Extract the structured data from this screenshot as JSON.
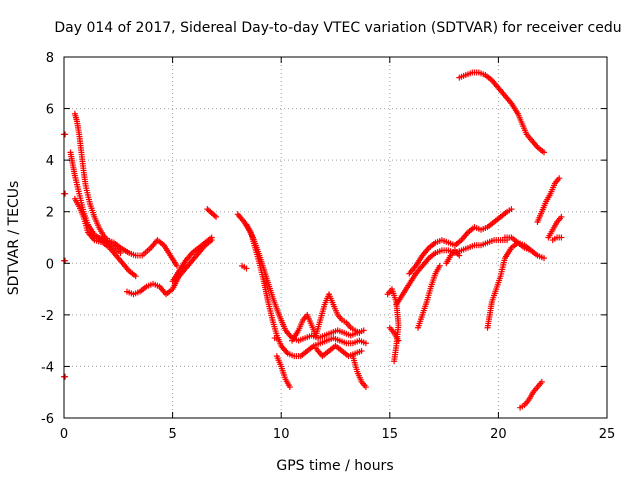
{
  "colors": {
    "series": "#ff0000",
    "grid": "#a0a0a0",
    "frame": "#000000",
    "background": "#ffffff"
  },
  "chart_data": {
    "type": "scatter",
    "title": "Day 014 of 2017, Sidereal Day-to-day VTEC variation (SDTVAR) for receiver cedu",
    "xlabel": "GPS time / hours",
    "ylabel": "SDTVAR / TECUs",
    "xlim": [
      0,
      25
    ],
    "ylim": [
      -6,
      8
    ],
    "xticks": [
      0,
      5,
      10,
      15,
      20,
      25
    ],
    "yticks": [
      -6,
      -4,
      -2,
      0,
      2,
      4,
      6,
      8
    ],
    "grid": true,
    "marker": "plus",
    "series": [
      {
        "name": "SDTVAR",
        "segments": [
          [
            [
              0.5,
              5.8
            ],
            [
              0.6,
              5.5
            ],
            [
              0.7,
              5.0
            ],
            [
              0.8,
              4.3
            ],
            [
              0.9,
              3.6
            ],
            [
              1.0,
              3.0
            ],
            [
              1.2,
              2.3
            ],
            [
              1.4,
              1.8
            ],
            [
              1.6,
              1.4
            ],
            [
              1.8,
              1.1
            ],
            [
              2.0,
              0.9
            ],
            [
              2.3,
              0.8
            ],
            [
              2.6,
              0.6
            ],
            [
              3.0,
              0.4
            ],
            [
              3.3,
              0.3
            ],
            [
              3.6,
              0.3
            ],
            [
              4.0,
              0.6
            ],
            [
              4.3,
              0.9
            ],
            [
              4.6,
              0.7
            ],
            [
              4.9,
              0.3
            ],
            [
              5.2,
              -0.1
            ]
          ],
          [
            [
              0.5,
              2.5
            ],
            [
              0.7,
              2.2
            ],
            [
              0.9,
              1.8
            ],
            [
              1.1,
              1.2
            ],
            [
              1.4,
              0.9
            ],
            [
              1.8,
              0.8
            ],
            [
              2.1,
              0.6
            ],
            [
              2.4,
              0.3
            ],
            [
              2.7,
              0.0
            ],
            [
              3.0,
              -0.3
            ],
            [
              3.3,
              -0.5
            ]
          ],
          [
            [
              0.3,
              4.3
            ],
            [
              0.5,
              3.4
            ],
            [
              0.7,
              2.7
            ],
            [
              0.9,
              2.0
            ],
            [
              1.1,
              1.5
            ],
            [
              1.4,
              1.1
            ],
            [
              1.8,
              0.9
            ],
            [
              2.2,
              0.7
            ],
            [
              2.6,
              0.4
            ]
          ],
          [
            [
              2.9,
              -1.1
            ],
            [
              3.2,
              -1.2
            ],
            [
              3.5,
              -1.1
            ],
            [
              3.8,
              -0.9
            ],
            [
              4.1,
              -0.8
            ],
            [
              4.4,
              -0.9
            ],
            [
              4.7,
              -1.2
            ],
            [
              5.0,
              -1.0
            ],
            [
              5.3,
              -0.5
            ],
            [
              5.6,
              -0.2
            ],
            [
              5.9,
              0.1
            ],
            [
              6.2,
              0.4
            ],
            [
              6.5,
              0.7
            ],
            [
              6.8,
              0.9
            ]
          ],
          [
            [
              5.0,
              -0.7
            ],
            [
              5.3,
              -0.3
            ],
            [
              5.6,
              0.1
            ],
            [
              5.9,
              0.4
            ],
            [
              6.2,
              0.6
            ],
            [
              6.5,
              0.8
            ],
            [
              6.8,
              1.0
            ]
          ],
          [
            [
              6.6,
              2.1
            ],
            [
              6.8,
              1.95
            ],
            [
              7.0,
              1.8
            ]
          ],
          [
            [
              8.0,
              1.9
            ],
            [
              8.3,
              1.6
            ],
            [
              8.6,
              1.2
            ],
            [
              8.8,
              0.6
            ],
            [
              9.0,
              0.0
            ],
            [
              9.2,
              -0.7
            ],
            [
              9.4,
              -1.5
            ],
            [
              9.6,
              -2.2
            ],
            [
              9.8,
              -2.8
            ],
            [
              10.0,
              -3.2
            ],
            [
              10.3,
              -3.5
            ],
            [
              10.6,
              -3.6
            ],
            [
              10.9,
              -3.6
            ],
            [
              11.2,
              -3.4
            ],
            [
              11.5,
              -3.2
            ],
            [
              11.8,
              -3.1
            ],
            [
              12.1,
              -3.0
            ],
            [
              12.4,
              -2.9
            ],
            [
              12.7,
              -3.0
            ],
            [
              13.0,
              -3.1
            ],
            [
              13.3,
              -3.1
            ],
            [
              13.6,
              -3.0
            ],
            [
              13.9,
              -3.1
            ]
          ],
          [
            [
              8.4,
              1.5
            ],
            [
              8.7,
              1.0
            ],
            [
              9.0,
              0.3
            ],
            [
              9.3,
              -0.5
            ],
            [
              9.6,
              -1.3
            ],
            [
              9.9,
              -2.0
            ],
            [
              10.2,
              -2.6
            ],
            [
              10.5,
              -2.9
            ],
            [
              10.8,
              -3.0
            ],
            [
              11.1,
              -2.9
            ],
            [
              11.4,
              -2.8
            ],
            [
              11.7,
              -2.9
            ],
            [
              12.0,
              -2.8
            ],
            [
              12.3,
              -2.7
            ],
            [
              12.6,
              -2.6
            ],
            [
              12.9,
              -2.7
            ],
            [
              13.2,
              -2.8
            ],
            [
              13.5,
              -2.7
            ],
            [
              13.8,
              -2.6
            ]
          ],
          [
            [
              8.2,
              -0.1
            ],
            [
              8.3,
              -0.15
            ],
            [
              8.4,
              -0.2
            ]
          ],
          [
            [
              9.8,
              -3.6
            ],
            [
              10.0,
              -4.0
            ],
            [
              10.2,
              -4.5
            ],
            [
              10.4,
              -4.8
            ]
          ],
          [
            [
              10.5,
              -3.0
            ],
            [
              10.8,
              -2.6
            ],
            [
              11.0,
              -2.2
            ],
            [
              11.2,
              -2.0
            ],
            [
              11.4,
              -2.4
            ],
            [
              11.6,
              -2.8
            ],
            [
              11.8,
              -2.2
            ],
            [
              12.0,
              -1.6
            ],
            [
              12.2,
              -1.2
            ],
            [
              12.4,
              -1.6
            ],
            [
              12.6,
              -2.0
            ],
            [
              12.8,
              -2.2
            ],
            [
              13.0,
              -2.3
            ],
            [
              13.2,
              -2.5
            ],
            [
              13.4,
              -2.6
            ],
            [
              13.6,
              -2.7
            ]
          ],
          [
            [
              11.6,
              -3.3
            ],
            [
              11.9,
              -3.6
            ],
            [
              12.2,
              -3.4
            ],
            [
              12.5,
              -3.2
            ],
            [
              12.8,
              -3.4
            ],
            [
              13.1,
              -3.6
            ],
            [
              13.4,
              -3.5
            ],
            [
              13.7,
              -3.4
            ]
          ],
          [
            [
              13.3,
              -3.6
            ],
            [
              13.5,
              -4.2
            ],
            [
              13.7,
              -4.6
            ],
            [
              13.9,
              -4.8
            ]
          ],
          [
            [
              14.9,
              -1.2
            ],
            [
              15.1,
              -1.0
            ],
            [
              15.3,
              -1.5
            ],
            [
              15.4,
              -2.4
            ],
            [
              15.3,
              -3.2
            ],
            [
              15.2,
              -3.8
            ]
          ],
          [
            [
              15.0,
              -2.5
            ],
            [
              15.2,
              -2.7
            ],
            [
              15.4,
              -3.0
            ]
          ],
          [
            [
              15.3,
              -1.6
            ],
            [
              15.6,
              -1.2
            ],
            [
              15.9,
              -0.8
            ],
            [
              16.2,
              -0.4
            ],
            [
              16.5,
              -0.1
            ],
            [
              16.8,
              0.2
            ],
            [
              17.1,
              0.4
            ],
            [
              17.4,
              0.5
            ],
            [
              17.7,
              0.5
            ],
            [
              18.0,
              0.4
            ],
            [
              18.3,
              0.5
            ],
            [
              18.6,
              0.6
            ],
            [
              18.9,
              0.7
            ],
            [
              19.2,
              0.7
            ],
            [
              19.5,
              0.8
            ],
            [
              19.8,
              0.9
            ],
            [
              20.1,
              0.9
            ],
            [
              20.4,
              0.9
            ]
          ],
          [
            [
              15.9,
              -0.4
            ],
            [
              16.2,
              -0.1
            ],
            [
              16.5,
              0.3
            ],
            [
              16.8,
              0.6
            ],
            [
              17.1,
              0.8
            ],
            [
              17.4,
              0.9
            ],
            [
              17.7,
              0.8
            ],
            [
              18.0,
              0.7
            ],
            [
              18.3,
              0.9
            ],
            [
              18.6,
              1.2
            ],
            [
              18.9,
              1.4
            ],
            [
              19.2,
              1.3
            ],
            [
              19.5,
              1.4
            ],
            [
              19.8,
              1.6
            ],
            [
              20.1,
              1.8
            ],
            [
              20.4,
              2.0
            ],
            [
              20.6,
              2.1
            ]
          ],
          [
            [
              16.3,
              -2.5
            ],
            [
              16.5,
              -2.0
            ],
            [
              16.7,
              -1.5
            ],
            [
              16.9,
              -0.9
            ],
            [
              17.1,
              -0.4
            ],
            [
              17.3,
              -0.1
            ]
          ],
          [
            [
              17.6,
              0.0
            ],
            [
              17.8,
              0.3
            ],
            [
              18.0,
              0.5
            ],
            [
              18.2,
              0.3
            ]
          ],
          [
            [
              19.5,
              -2.5
            ],
            [
              19.6,
              -2.0
            ],
            [
              19.7,
              -1.5
            ],
            [
              19.9,
              -1.0
            ],
            [
              20.1,
              -0.5
            ],
            [
              20.3,
              0.2
            ],
            [
              20.6,
              0.6
            ],
            [
              20.9,
              0.8
            ],
            [
              21.2,
              0.7
            ],
            [
              21.5,
              0.5
            ],
            [
              21.8,
              0.3
            ],
            [
              22.1,
              0.2
            ]
          ],
          [
            [
              20.3,
              1.0
            ],
            [
              20.6,
              1.0
            ],
            [
              20.9,
              0.8
            ],
            [
              21.2,
              0.6
            ],
            [
              21.5,
              0.5
            ]
          ],
          [
            [
              18.2,
              7.2
            ],
            [
              18.5,
              7.3
            ],
            [
              18.8,
              7.4
            ],
            [
              19.1,
              7.4
            ],
            [
              19.4,
              7.3
            ],
            [
              19.7,
              7.1
            ],
            [
              20.0,
              6.8
            ],
            [
              20.3,
              6.5
            ],
            [
              20.6,
              6.2
            ],
            [
              20.9,
              5.8
            ],
            [
              21.1,
              5.4
            ],
            [
              21.3,
              5.0
            ],
            [
              21.5,
              4.8
            ],
            [
              21.8,
              4.5
            ],
            [
              22.1,
              4.3
            ]
          ],
          [
            [
              21.0,
              -5.6
            ],
            [
              21.2,
              -5.5
            ],
            [
              21.4,
              -5.3
            ],
            [
              21.6,
              -5.0
            ],
            [
              21.8,
              -4.8
            ],
            [
              22.0,
              -4.6
            ]
          ],
          [
            [
              21.8,
              1.6
            ],
            [
              22.0,
              2.0
            ],
            [
              22.2,
              2.4
            ],
            [
              22.4,
              2.7
            ],
            [
              22.6,
              3.1
            ],
            [
              22.8,
              3.3
            ]
          ],
          [
            [
              22.3,
              1.0
            ],
            [
              22.5,
              1.3
            ],
            [
              22.7,
              1.6
            ],
            [
              22.9,
              1.8
            ]
          ],
          [
            [
              22.5,
              0.9
            ],
            [
              22.7,
              1.0
            ],
            [
              22.9,
              1.0
            ]
          ],
          [
            [
              0.0,
              5.0
            ],
            [
              0.05,
              5.0
            ]
          ],
          [
            [
              0.0,
              2.7
            ],
            [
              0.05,
              2.7
            ]
          ],
          [
            [
              0.0,
              0.1
            ],
            [
              0.05,
              0.1
            ]
          ],
          [
            [
              0.0,
              -4.4
            ],
            [
              0.05,
              -4.4
            ]
          ],
          [
            [
              9.7,
              -2.9
            ],
            [
              9.8,
              -2.9
            ]
          ]
        ]
      }
    ]
  }
}
